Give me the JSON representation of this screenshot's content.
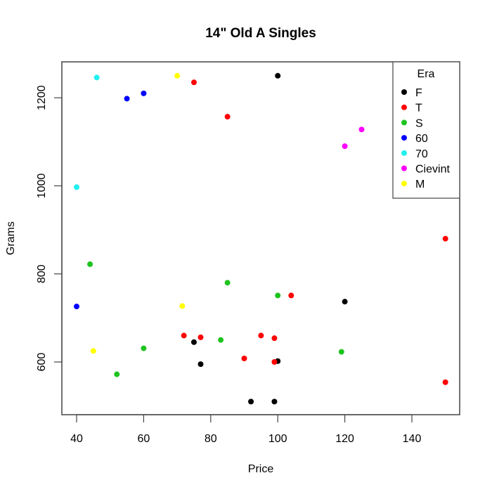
{
  "chart_data": {
    "type": "scatter",
    "title": "14\" Old A Singles",
    "xlabel": "Price",
    "ylabel": "Grams",
    "xlim": [
      36,
      154
    ],
    "ylim": [
      480,
      1280
    ],
    "xticks": [
      40,
      60,
      80,
      100,
      120,
      140
    ],
    "yticks": [
      600,
      800,
      1000,
      1200
    ],
    "grid": false,
    "legend": {
      "title": "Era",
      "position": "top-right",
      "entries": [
        {
          "label": "F",
          "color": "#000000"
        },
        {
          "label": "T",
          "color": "#ff0000"
        },
        {
          "label": "S",
          "color": "#1fc31f"
        },
        {
          "label": "60",
          "color": "#0000ff"
        },
        {
          "label": "70",
          "color": "#22f0f0"
        },
        {
          "label": "Cievint",
          "color": "#ff00ff"
        },
        {
          "label": "M",
          "color": "#ffff00"
        }
      ]
    },
    "series": [
      {
        "name": "F",
        "color": "#000000",
        "points": [
          [
            100,
            1250
          ],
          [
            120,
            737
          ],
          [
            75,
            645
          ],
          [
            77,
            595
          ],
          [
            100,
            602
          ],
          [
            92,
            510
          ],
          [
            99,
            510
          ]
        ]
      },
      {
        "name": "T",
        "color": "#ff0000",
        "points": [
          [
            75,
            1235
          ],
          [
            85,
            1157
          ],
          [
            150,
            880
          ],
          [
            150,
            554
          ],
          [
            104,
            751
          ],
          [
            72,
            660
          ],
          [
            77,
            656
          ],
          [
            95,
            660
          ],
          [
            99,
            654
          ],
          [
            90,
            608
          ],
          [
            99,
            600
          ]
        ]
      },
      {
        "name": "S",
        "color": "#1fc31f",
        "points": [
          [
            44,
            822
          ],
          [
            85,
            780
          ],
          [
            100,
            751
          ],
          [
            60,
            631
          ],
          [
            83,
            650
          ],
          [
            119,
            623
          ],
          [
            52,
            572
          ]
        ]
      },
      {
        "name": "60",
        "color": "#0000ff",
        "points": [
          [
            55,
            1198
          ],
          [
            60,
            1210
          ],
          [
            40,
            726
          ]
        ]
      },
      {
        "name": "70",
        "color": "#22f0f0",
        "points": [
          [
            46,
            1246
          ],
          [
            40,
            997
          ]
        ]
      },
      {
        "name": "Cievint",
        "color": "#ff00ff",
        "points": [
          [
            120,
            1090
          ],
          [
            125,
            1128
          ]
        ]
      },
      {
        "name": "M",
        "color": "#ffff00",
        "points": [
          [
            70,
            1250
          ],
          [
            71.5,
            727
          ],
          [
            45,
            625
          ]
        ]
      }
    ]
  }
}
